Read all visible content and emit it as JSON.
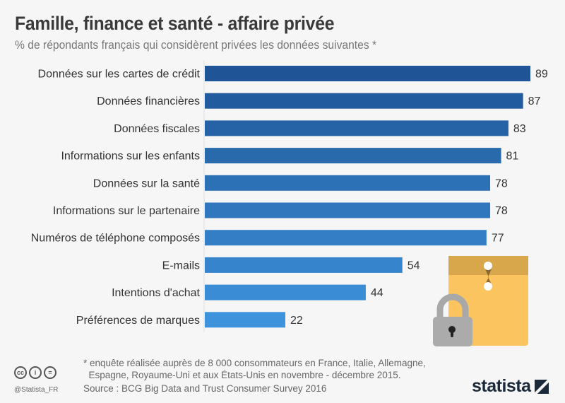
{
  "header": {
    "title": "Famille, finance et santé - affaire privée",
    "subtitle": "% de répondants français qui considèrent privées les données suivantes *"
  },
  "chart_data": {
    "type": "bar",
    "orientation": "horizontal",
    "categories": [
      "Données sur les cartes de crédit",
      "Données financières",
      "Données fiscales",
      "Informations sur les enfants",
      "Données sur la santé",
      "Informations sur le partenaire",
      "Numéros de téléphone composés",
      "E-mails",
      "Intentions d'achat",
      "Préférences de marques"
    ],
    "values": [
      89,
      87,
      83,
      81,
      78,
      78,
      77,
      54,
      44,
      22
    ],
    "xlim": [
      0,
      100
    ],
    "grid": false,
    "colors": {
      "dark": "#1f5596",
      "light": "#3d93dc"
    }
  },
  "footer": {
    "footnote": "* enquête réalisée auprès de 8 000 consommateurs en France, Italie, Allemagne,\n  Espagne, Royaume-Uni et aux États-Unis en novembre - décembre 2015.",
    "source": "Source : BCG Big Data and Trust Consumer Survey 2016",
    "handle": "@Statista_FR",
    "logo": "statista",
    "license_icons": [
      "cc",
      "by",
      "nd"
    ]
  }
}
